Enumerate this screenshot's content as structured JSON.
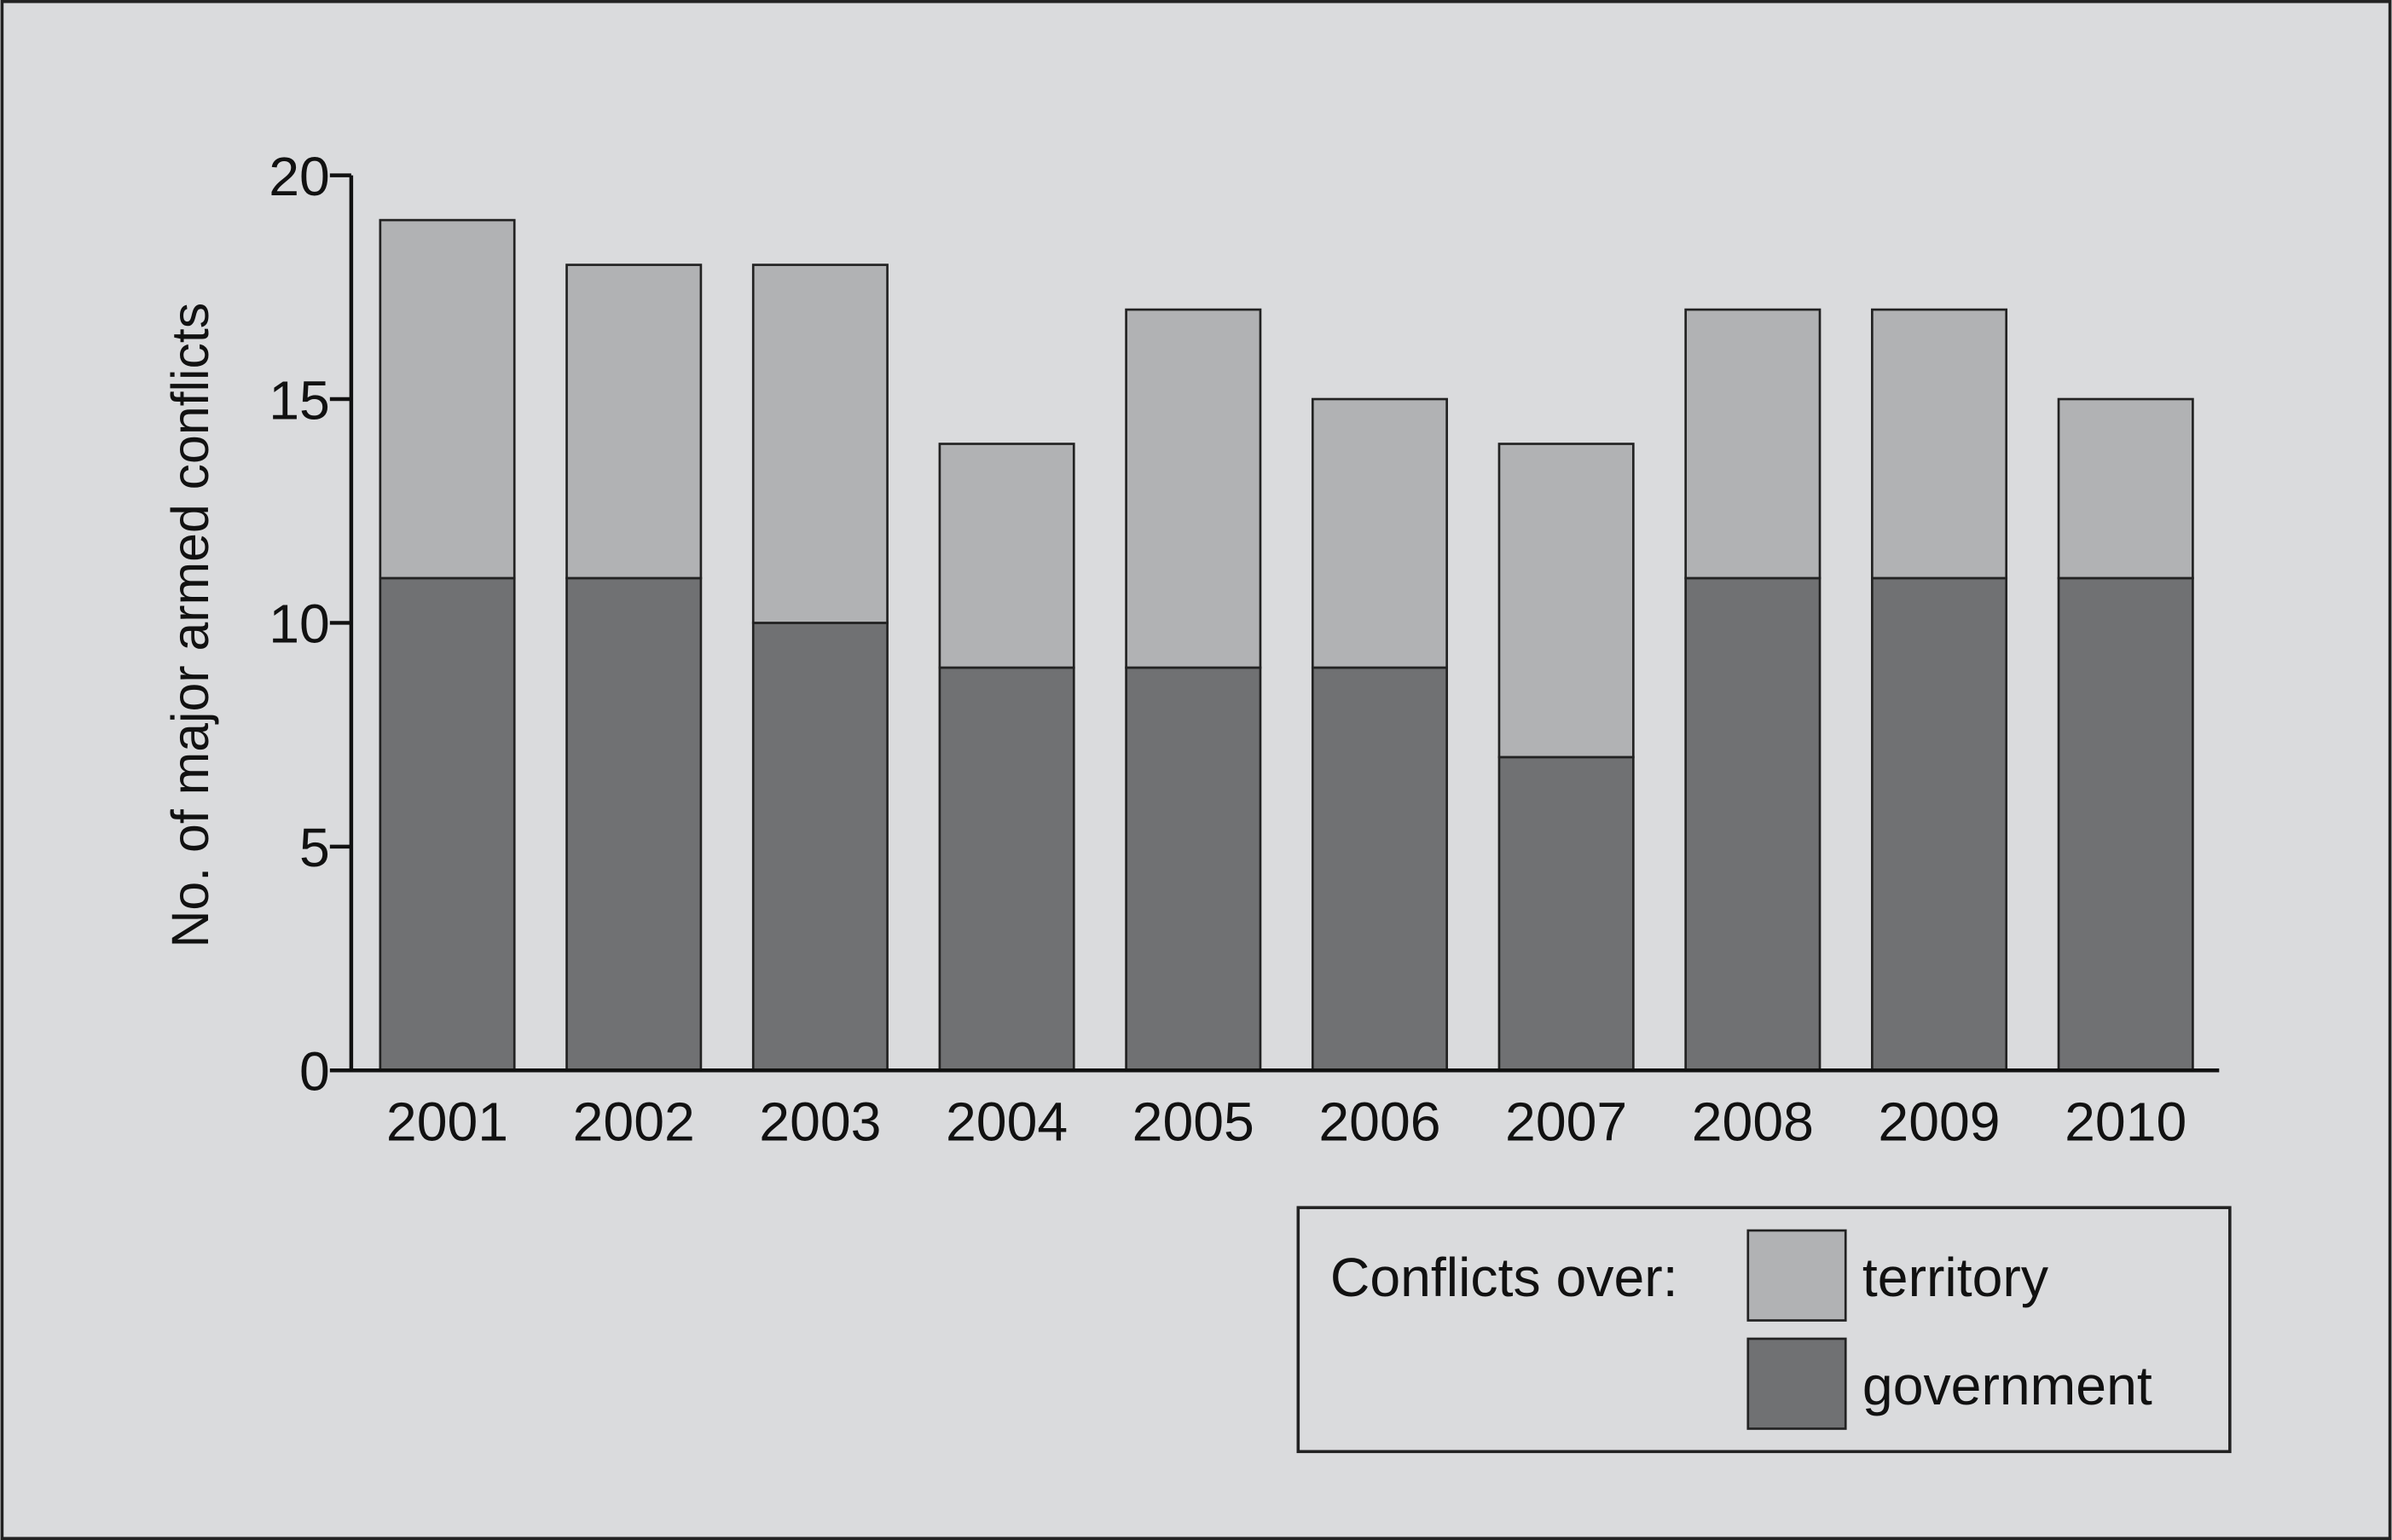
{
  "chart_data": {
    "type": "bar",
    "stacked": true,
    "title": "",
    "xlabel": "",
    "ylabel": "No. of major armed conflicts",
    "ylim": [
      0,
      20
    ],
    "yticks": [
      0,
      5,
      10,
      15,
      20
    ],
    "grid": false,
    "categories": [
      "2001",
      "2002",
      "2003",
      "2004",
      "2005",
      "2006",
      "2007",
      "2008",
      "2009",
      "2010"
    ],
    "series": [
      {
        "name": "government",
        "color": "#707173",
        "values": [
          11,
          11,
          10,
          9,
          9,
          9,
          7,
          11,
          11,
          11
        ]
      },
      {
        "name": "territory",
        "color": "#b1b2b4",
        "values": [
          8,
          7,
          8,
          5,
          8,
          6,
          7,
          6,
          6,
          4
        ]
      }
    ],
    "legend": {
      "title": "Conflicts over:",
      "placement": "bottom-right"
    },
    "background": "#dadbdd"
  }
}
